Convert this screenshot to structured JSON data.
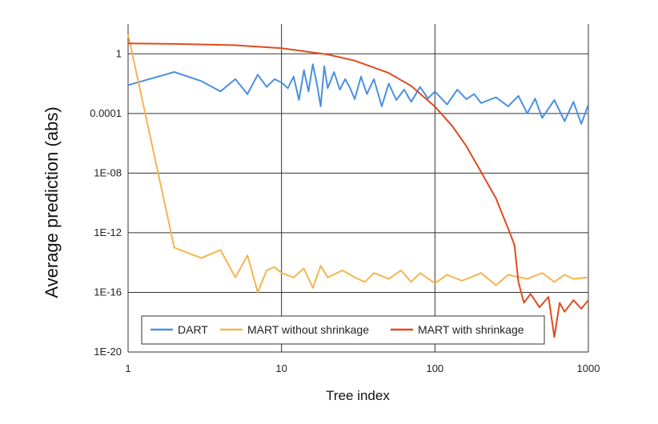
{
  "chart_data": {
    "type": "line",
    "title": "",
    "xlabel": "Tree index",
    "ylabel": "Average prediction (abs)",
    "x_scale": "log",
    "y_scale": "log",
    "xlim": [
      1,
      1000
    ],
    "ylim": [
      1e-20,
      100
    ],
    "x_ticks": [
      {
        "value": 1,
        "label": "1"
      },
      {
        "value": 10,
        "label": "10"
      },
      {
        "value": 100,
        "label": "100"
      },
      {
        "value": 1000,
        "label": "1000"
      }
    ],
    "y_ticks": [
      {
        "value": 1,
        "label": "1"
      },
      {
        "value": 0.0001,
        "label": "0.0001"
      },
      {
        "value": 1e-08,
        "label": "1E-08"
      },
      {
        "value": 1e-12,
        "label": "1E-12"
      },
      {
        "value": 1e-16,
        "label": "1E-16"
      },
      {
        "value": 1e-20,
        "label": "1E-20"
      }
    ],
    "grid": true,
    "legend_position": "bottom-inside",
    "series": [
      {
        "name": "DART",
        "color": "#4a90e2",
        "x": [
          1,
          2,
          3,
          4,
          5,
          6,
          7,
          8,
          9,
          10,
          11,
          12,
          13,
          14,
          15,
          16,
          17,
          18,
          19,
          20,
          22,
          24,
          26,
          28,
          30,
          33,
          36,
          40,
          45,
          50,
          56,
          63,
          70,
          80,
          90,
          100,
          120,
          140,
          160,
          180,
          200,
          250,
          300,
          350,
          400,
          450,
          500,
          600,
          700,
          800,
          900,
          1000
        ],
        "y": [
          0.008,
          0.06,
          0.015,
          0.003,
          0.02,
          0.002,
          0.04,
          0.006,
          0.02,
          0.012,
          0.005,
          0.03,
          0.0008,
          0.08,
          0.003,
          0.2,
          0.01,
          0.0003,
          0.15,
          0.005,
          0.06,
          0.004,
          0.02,
          0.005,
          0.0009,
          0.03,
          0.002,
          0.02,
          0.0003,
          0.01,
          0.0008,
          0.004,
          0.0006,
          0.006,
          0.001,
          0.003,
          0.0004,
          0.004,
          0.0009,
          0.002,
          0.0005,
          0.0012,
          0.0003,
          0.0015,
          0.0001,
          0.001,
          5e-05,
          0.0008,
          3e-05,
          0.0006,
          2e-05,
          0.0004
        ]
      },
      {
        "name": "MART without shrinkage",
        "color": "#f5b44f",
        "x": [
          1,
          2,
          3,
          4,
          5,
          6,
          7,
          8,
          9,
          10,
          12,
          14,
          16,
          18,
          20,
          25,
          30,
          35,
          40,
          50,
          60,
          70,
          80,
          100,
          120,
          150,
          200,
          250,
          300,
          400,
          500,
          600,
          700,
          800,
          1000
        ],
        "y": [
          20,
          1e-13,
          2e-14,
          7e-14,
          1e-15,
          3e-14,
          1e-16,
          3e-15,
          5e-15,
          2e-15,
          1e-15,
          4e-15,
          2e-16,
          6e-15,
          1e-15,
          3e-15,
          1e-15,
          5e-16,
          2e-15,
          8e-16,
          3e-15,
          5e-16,
          2e-15,
          4e-16,
          1.5e-15,
          6e-16,
          2e-15,
          3e-16,
          1.5e-15,
          8e-16,
          2e-15,
          5e-16,
          1.5e-15,
          8e-16,
          1e-15
        ]
      },
      {
        "name": "MART with shrinkage",
        "color": "#e04a1f",
        "x": [
          1,
          2,
          5,
          10,
          20,
          30,
          50,
          70,
          100,
          130,
          160,
          200,
          250,
          300,
          330,
          350,
          380,
          420,
          480,
          550,
          600,
          650,
          700,
          800,
          900,
          1000
        ],
        "y": [
          5,
          4.6,
          3.8,
          2.4,
          0.9,
          0.35,
          0.052,
          0.007,
          0.00029,
          1.38e-05,
          6.5e-07,
          1.2e-08,
          2e-10,
          1.9e-12,
          1.5e-13,
          5e-16,
          2e-17,
          8e-17,
          1e-17,
          5e-17,
          1e-19,
          2e-17,
          5e-18,
          3e-17,
          8e-18,
          3e-17
        ]
      }
    ]
  }
}
